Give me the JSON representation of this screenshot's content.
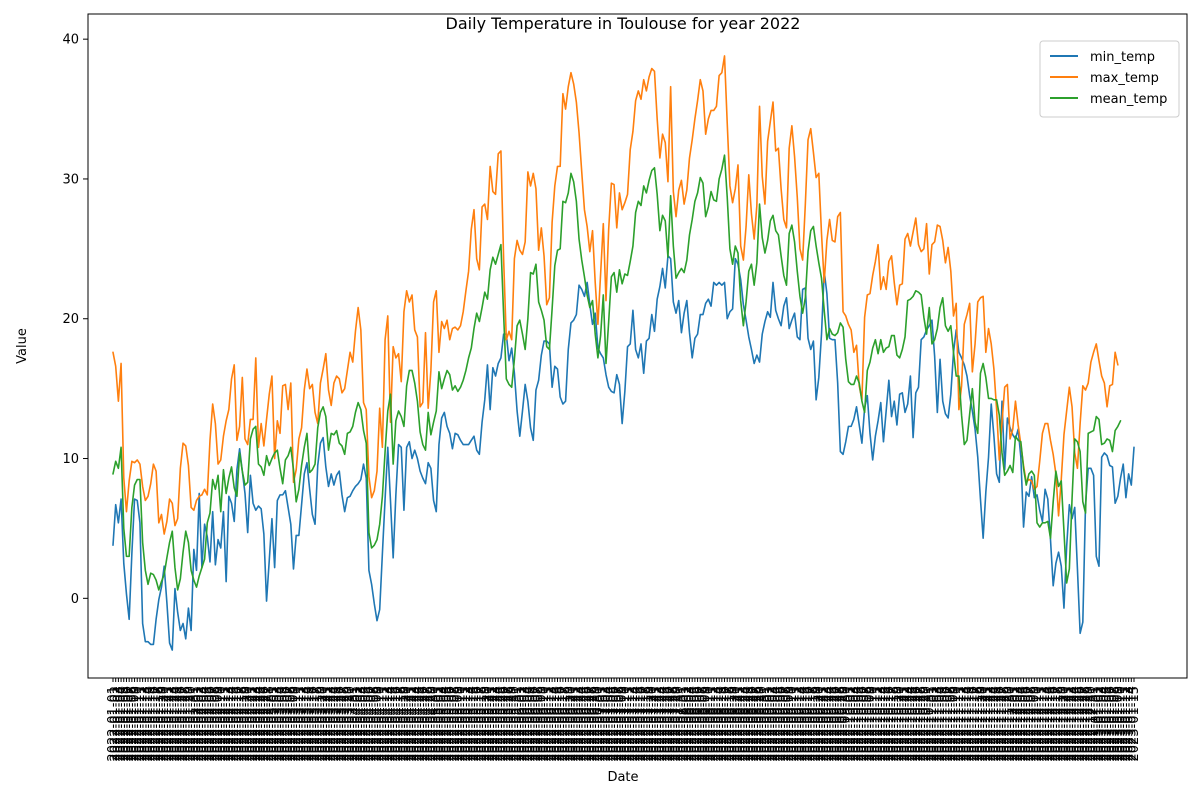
{
  "colors": {
    "min_temp": "#1f77b4",
    "max_temp": "#ff7f0e",
    "mean_temp": "#2ca02c"
  },
  "chart_data": {
    "type": "line",
    "title": "Daily Temperature in Toulouse for year 2022",
    "xlabel": "Date",
    "ylabel": "Value",
    "x_start": "2022-01-01",
    "x_end": "2022-12-31",
    "x_tick_labels_note": "daily date tick labels rotated 90°, densely overlapping",
    "ylim": [
      -5.7,
      41.8
    ],
    "y_ticks": [
      0,
      10,
      20,
      30,
      40
    ],
    "grid": false,
    "legend_position": "top-right",
    "series": [
      {
        "name": "min_temp",
        "values": [
          3.8,
          6.7,
          5.4,
          7.1,
          2.5,
          0.3,
          -1.5,
          3.2,
          7.1,
          7.0,
          5.4,
          -1.8,
          -3.1,
          -3.1,
          -3.3,
          -3.3,
          -1.5,
          -0.1,
          0.8,
          2.3,
          -0.3,
          -3.2,
          -3.7,
          0.7,
          -1.0,
          -2.3,
          -1.8,
          -2.9,
          -0.7,
          -2.3,
          3.5,
          2.0,
          7.5,
          2.2,
          5.3,
          4.4,
          2.6,
          6.2,
          2.4,
          4.2,
          3.6,
          6.2,
          1.2,
          7.3,
          6.8,
          5.5,
          9.2,
          10.7,
          9.1,
          7.5,
          4.7,
          8.8,
          6.8,
          6.3,
          6.6,
          6.4,
          4.6,
          -0.2,
          2.7,
          5.7,
          2.2,
          7.0,
          7.4,
          7.4,
          7.7,
          6.5,
          5.3,
          2.1,
          4.5,
          4.5,
          6.7,
          8.9,
          9.7,
          7.8,
          6.0,
          5.3,
          9.5,
          11.1,
          11.5,
          9.4,
          8.0,
          8.9,
          8.1,
          8.8,
          9.1,
          7.4,
          6.2,
          7.2,
          7.3,
          7.7,
          8.0,
          8.2,
          8.5,
          9.6,
          8.6,
          2.0,
          1.0,
          -0.4,
          -1.6,
          -0.8,
          3.2,
          7.1,
          10.8,
          7.0,
          2.9,
          7.4,
          11.0,
          10.8,
          6.3,
          10.8,
          11.2,
          10.0,
          10.6,
          10.0,
          9.1,
          8.6,
          8.2,
          9.7,
          9.3,
          7.0,
          6.2,
          11.0,
          12.9,
          13.3,
          12.3,
          11.8,
          10.7,
          11.8,
          11.7,
          11.3,
          11.0,
          11.0,
          11.0,
          11.3,
          11.6,
          10.6,
          10.3,
          12.6,
          14.2,
          16.7,
          13.5,
          16.5,
          15.9,
          16.8,
          17.2,
          18.9,
          18.9,
          17.0,
          17.9,
          16.1,
          13.4,
          11.6,
          13.4,
          15.3,
          14.1,
          12.2,
          11.3,
          14.9,
          15.6,
          17.4,
          18.4,
          18.4,
          18.2,
          15.1,
          16.6,
          16.4,
          14.4,
          13.9,
          14.1,
          17.8,
          19.7,
          19.9,
          20.3,
          22.4,
          22.1,
          21.6,
          22.6,
          21.0,
          19.6,
          20.4,
          17.9,
          17.5,
          17.2,
          16.0,
          15.1,
          14.8,
          14.7,
          16.0,
          15.3,
          12.5,
          14.8,
          18.0,
          18.2,
          20.6,
          17.8,
          17.2,
          18.2,
          16.1,
          18.4,
          18.6,
          20.3,
          19.1,
          21.4,
          22.3,
          23.6,
          22.2,
          24.5,
          24.3,
          21.2,
          20.4,
          21.3,
          19.0,
          20.4,
          21.3,
          19.0,
          17.2,
          18.6,
          18.9,
          20.3,
          20.3,
          21.1,
          21.4,
          20.9,
          22.6,
          22.4,
          22.6,
          22.4,
          22.6,
          20.0,
          20.5,
          20.7,
          24.3,
          23.9,
          22.8,
          21.0,
          19.9,
          18.7,
          17.8,
          16.8,
          17.4,
          16.9,
          18.9,
          19.8,
          20.5,
          20.1,
          22.6,
          20.6,
          20.0,
          19.5,
          20.9,
          21.5,
          19.3,
          19.9,
          20.4,
          18.7,
          18.5,
          22.1,
          22.2,
          18.6,
          17.8,
          18.4,
          14.2,
          15.8,
          18.9,
          23.4,
          21.8,
          18.6,
          18.5,
          18.5,
          15.4,
          10.5,
          10.3,
          11.2,
          12.3,
          12.3,
          12.8,
          13.7,
          12.4,
          11.1,
          13.6,
          14.5,
          11.8,
          9.9,
          11.6,
          12.7,
          14.0,
          11.2,
          13.4,
          15.6,
          13.0,
          14.1,
          12.4,
          14.6,
          14.7,
          13.3,
          13.9,
          15.9,
          11.5,
          14.7,
          15.1,
          18.5,
          18.7,
          19.2,
          19.5,
          19.9,
          17.3,
          13.3,
          17.1,
          14.1,
          13.2,
          12.9,
          14.6,
          17.6,
          19.2,
          17.6,
          17.2,
          16.7,
          15.9,
          14.5,
          13.4,
          12.1,
          10.1,
          7.1,
          4.3,
          7.6,
          10.1,
          13.9,
          11.6,
          8.9,
          8.3,
          14.1,
          9.2,
          12.9,
          12.2,
          11.7,
          11.4,
          12.1,
          10.1,
          5.1,
          7.6,
          7.3,
          8.7,
          7.2,
          7.4,
          6.3,
          5.5,
          7.8,
          7.1,
          4.2,
          0.9,
          2.5,
          3.3,
          2.3,
          -0.7,
          3.7,
          6.7,
          5.7,
          6.5,
          2.1,
          -2.5,
          -1.7,
          6.7,
          9.3,
          9.3,
          8.8,
          3.0,
          2.3,
          10.1,
          10.4,
          10.2,
          9.5,
          9.4,
          6.8,
          7.3,
          8.6,
          9.6,
          7.2,
          8.9,
          8.1,
          10.8
        ]
      },
      {
        "name": "max_temp",
        "values": [
          17.6,
          16.6,
          14.1,
          16.8,
          8.6,
          6.2,
          8.4,
          9.8,
          9.7,
          9.9,
          9.6,
          8.0,
          7.0,
          7.3,
          8.2,
          9.6,
          9.1,
          5.4,
          6.0,
          4.6,
          5.5,
          7.1,
          6.8,
          5.2,
          5.7,
          9.3,
          11.1,
          10.9,
          9.5,
          6.5,
          6.3,
          7.0,
          7.3,
          7.4,
          7.8,
          7.4,
          11.3,
          13.9,
          12.5,
          9.6,
          9.9,
          11.6,
          12.7,
          13.5,
          15.7,
          16.7,
          11.3,
          12.3,
          15.8,
          11.4,
          11.0,
          12.8,
          12.8,
          17.2,
          10.8,
          12.5,
          10.9,
          12.8,
          14.6,
          15.9,
          10.0,
          12.7,
          11.8,
          15.2,
          15.3,
          13.5,
          15.4,
          8.3,
          9.2,
          11.4,
          12.2,
          14.9,
          16.4,
          15.0,
          15.3,
          13.3,
          12.5,
          15.4,
          16.4,
          17.5,
          14.9,
          13.8,
          15.4,
          15.9,
          15.7,
          14.7,
          15.0,
          16.3,
          17.6,
          16.9,
          19.1,
          20.8,
          19.2,
          14.0,
          13.5,
          8.7,
          7.2,
          7.7,
          9.1,
          13.6,
          10.8,
          18.5,
          20.2,
          12.6,
          18.0,
          17.2,
          17.5,
          15.5,
          20.5,
          22.0,
          21.2,
          21.7,
          19.2,
          18.7,
          13.7,
          14.0,
          19.0,
          13.6,
          16.3,
          21.2,
          22.0,
          17.6,
          19.8,
          19.3,
          19.9,
          18.5,
          19.3,
          19.4,
          19.2,
          19.5,
          20.5,
          22.0,
          23.4,
          26.4,
          27.8,
          24.3,
          23.5,
          28.0,
          28.2,
          27.1,
          30.9,
          29.1,
          28.9,
          31.8,
          32.0,
          24.3,
          18.5,
          19.1,
          18.5,
          24.3,
          25.6,
          24.9,
          24.6,
          25.5,
          30.5,
          29.5,
          30.4,
          29.3,
          24.9,
          26.5,
          24.5,
          21.0,
          21.5,
          26.9,
          29.5,
          30.9,
          30.9,
          36.1,
          35.0,
          36.6,
          37.6,
          36.8,
          35.5,
          33.3,
          30.5,
          27.8,
          26.6,
          24.8,
          26.3,
          22.6,
          19.6,
          23.2,
          26.8,
          21.3,
          26.4,
          29.7,
          29.6,
          26.5,
          29.0,
          27.8,
          28.3,
          28.9,
          32.1,
          33.4,
          35.6,
          36.3,
          35.7,
          37.1,
          36.3,
          37.3,
          37.9,
          37.7,
          34.3,
          31.5,
          33.2,
          32.6,
          29.8,
          36.6,
          29.1,
          27.3,
          29.2,
          29.9,
          28.2,
          29.2,
          31.5,
          32.8,
          34.3,
          35.6,
          37.1,
          36.3,
          33.2,
          34.3,
          34.9,
          34.9,
          35.2,
          37.4,
          37.6,
          38.8,
          34.0,
          29.5,
          28.3,
          29.3,
          31.0,
          25.2,
          24.2,
          26.6,
          30.3,
          27.5,
          25.7,
          28.1,
          35.2,
          30.2,
          28.2,
          32.7,
          34.1,
          35.5,
          32.0,
          32.2,
          29.3,
          27.1,
          26.5,
          32.2,
          33.8,
          31.6,
          28.7,
          25.0,
          24.2,
          28.2,
          32.8,
          33.6,
          31.9,
          30.1,
          30.4,
          26.1,
          22.6,
          25.6,
          27.1,
          25.6,
          25.5,
          27.3,
          27.6,
          20.5,
          20.2,
          19.6,
          19.2,
          17.6,
          18.1,
          15.2,
          14.2,
          20.1,
          21.7,
          21.8,
          23.1,
          24.1,
          25.3,
          22.1,
          23.0,
          22.1,
          24.1,
          24.5,
          22.6,
          21.0,
          22.4,
          22.5,
          25.7,
          26.1,
          25.2,
          26.2,
          27.2,
          25.3,
          24.8,
          25.0,
          26.8,
          23.2,
          25.3,
          25.5,
          26.7,
          26.6,
          25.6,
          24.0,
          25.1,
          23.4,
          20.2,
          21.1,
          13.5,
          15.2,
          19.6,
          20.3,
          21.1,
          16.2,
          18.2,
          21.2,
          21.5,
          21.6,
          17.6,
          19.3,
          18.2,
          16.4,
          13.5,
          9.9,
          12.6,
          15.1,
          15.3,
          11.4,
          12.1,
          14.1,
          12.4,
          11.0,
          9.5,
          8.3,
          8.5,
          8.4,
          7.8,
          8.0,
          9.8,
          11.8,
          12.5,
          12.5,
          11.3,
          10.3,
          8.9,
          5.9,
          8.5,
          11.7,
          13.4,
          15.1,
          13.7,
          10.4,
          9.3,
          12.5,
          15.2,
          14.9,
          15.4,
          16.9,
          17.6,
          18.2,
          17.0,
          15.9,
          15.4,
          13.7,
          15.2,
          15.3,
          17.6,
          16.7
        ]
      },
      {
        "name": "mean_temp",
        "values": [
          8.9,
          9.8,
          9.3,
          10.8,
          5.0,
          3.0,
          3.0,
          6.5,
          8.1,
          8.5,
          8.5,
          4.0,
          2.0,
          1.0,
          1.8,
          1.7,
          1.3,
          0.6,
          1.2,
          1.7,
          2.9,
          4.0,
          4.8,
          2.2,
          0.6,
          1.4,
          3.3,
          4.8,
          4.0,
          2.0,
          1.3,
          0.8,
          1.6,
          2.2,
          2.8,
          5.4,
          6.1,
          8.5,
          7.8,
          8.8,
          6.2,
          9.2,
          7.5,
          8.6,
          9.4,
          7.9,
          7.3,
          10.4,
          9.1,
          8.1,
          8.3,
          11.4,
          12.1,
          12.3,
          9.6,
          9.4,
          8.8,
          10.2,
          9.5,
          10.0,
          10.4,
          10.6,
          9.3,
          8.2,
          9.9,
          10.2,
          10.8,
          9.2,
          6.9,
          7.8,
          9.5,
          10.8,
          11.8,
          9.0,
          9.2,
          9.6,
          12.2,
          13.3,
          13.7,
          13.0,
          10.6,
          11.8,
          11.7,
          12.0,
          11.1,
          10.9,
          10.3,
          11.8,
          11.9,
          12.3,
          13.3,
          14.0,
          13.5,
          12.0,
          11.1,
          4.7,
          3.6,
          3.8,
          4.2,
          5.3,
          7.3,
          10.5,
          13.4,
          14.6,
          9.6,
          12.7,
          13.4,
          13.0,
          12.3,
          15.2,
          16.3,
          16.3,
          15.4,
          14.1,
          11.9,
          11.0,
          10.6,
          13.3,
          11.7,
          12.6,
          13.4,
          16.2,
          15.0,
          15.7,
          16.3,
          16.0,
          14.9,
          15.2,
          14.8,
          15.1,
          15.6,
          16.3,
          17.2,
          17.9,
          19.3,
          20.4,
          19.8,
          20.8,
          21.9,
          21.4,
          23.5,
          24.4,
          23.9,
          24.6,
          25.3,
          20.3,
          15.7,
          15.3,
          15.1,
          17.1,
          19.5,
          19.9,
          18.9,
          17.8,
          20.0,
          23.3,
          23.2,
          23.9,
          21.2,
          20.6,
          19.9,
          18.0,
          17.8,
          20.7,
          23.8,
          24.9,
          25.0,
          28.4,
          28.3,
          29.0,
          30.4,
          29.8,
          28.4,
          25.7,
          24.2,
          23.0,
          21.7,
          20.8,
          21.3,
          18.9,
          17.2,
          18.8,
          21.7,
          16.8,
          19.8,
          23.0,
          23.3,
          21.9,
          23.5,
          22.5,
          23.2,
          23.1,
          24.1,
          25.2,
          27.6,
          28.4,
          28.1,
          29.5,
          29.0,
          29.9,
          30.6,
          30.8,
          28.9,
          26.3,
          27.4,
          27.0,
          24.4,
          28.8,
          25.2,
          22.9,
          23.3,
          23.6,
          23.3,
          24.2,
          26.0,
          27.1,
          28.4,
          29.0,
          30.1,
          29.7,
          27.3,
          28.0,
          29.1,
          28.5,
          28.4,
          30.0,
          30.7,
          31.7,
          28.7,
          25.0,
          23.9,
          25.2,
          24.7,
          21.3,
          19.5,
          21.2,
          23.4,
          23.9,
          22.4,
          24.0,
          28.2,
          25.8,
          24.7,
          25.6,
          27.0,
          27.4,
          26.3,
          26.0,
          24.5,
          23.1,
          22.4,
          26.1,
          26.7,
          25.5,
          23.4,
          21.6,
          20.4,
          21.5,
          24.8,
          26.3,
          26.6,
          25.2,
          24.0,
          22.9,
          20.6,
          18.5,
          19.3,
          18.9,
          18.8,
          19.0,
          19.7,
          19.4,
          17.1,
          15.5,
          15.3,
          15.3,
          15.9,
          15.4,
          14.1,
          13.3,
          16.3,
          16.9,
          17.9,
          18.5,
          17.5,
          18.5,
          17.6,
          17.9,
          18.0,
          18.8,
          18.8,
          17.4,
          17.2,
          17.8,
          18.7,
          21.3,
          21.4,
          21.6,
          22.0,
          21.9,
          21.7,
          20.1,
          18.9,
          20.8,
          18.2,
          18.5,
          19.3,
          20.8,
          21.5,
          19.5,
          19.1,
          19.5,
          17.6,
          15.9,
          15.9,
          13.1,
          11.0,
          11.3,
          13.2,
          15.0,
          12.6,
          11.8,
          16.1,
          16.8,
          15.8,
          14.3,
          14.3,
          14.2,
          14.2,
          13.1,
          10.4,
          8.8,
          9.1,
          9.5,
          9.0,
          11.6,
          11.3,
          11.2,
          9.3,
          8.1,
          8.9,
          9.1,
          8.8,
          5.4,
          5.1,
          5.4,
          5.4,
          5.5,
          4.3,
          6.9,
          9.1,
          8.0,
          8.4,
          4.8,
          1.1,
          2.1,
          7.1,
          11.4,
          11.2,
          10.5,
          6.9,
          6.1,
          11.8,
          11.9,
          12.0,
          13.0,
          12.8,
          11.0,
          11.1,
          11.4,
          11.3,
          10.5,
          12.0,
          12.3,
          12.7
        ]
      }
    ]
  }
}
